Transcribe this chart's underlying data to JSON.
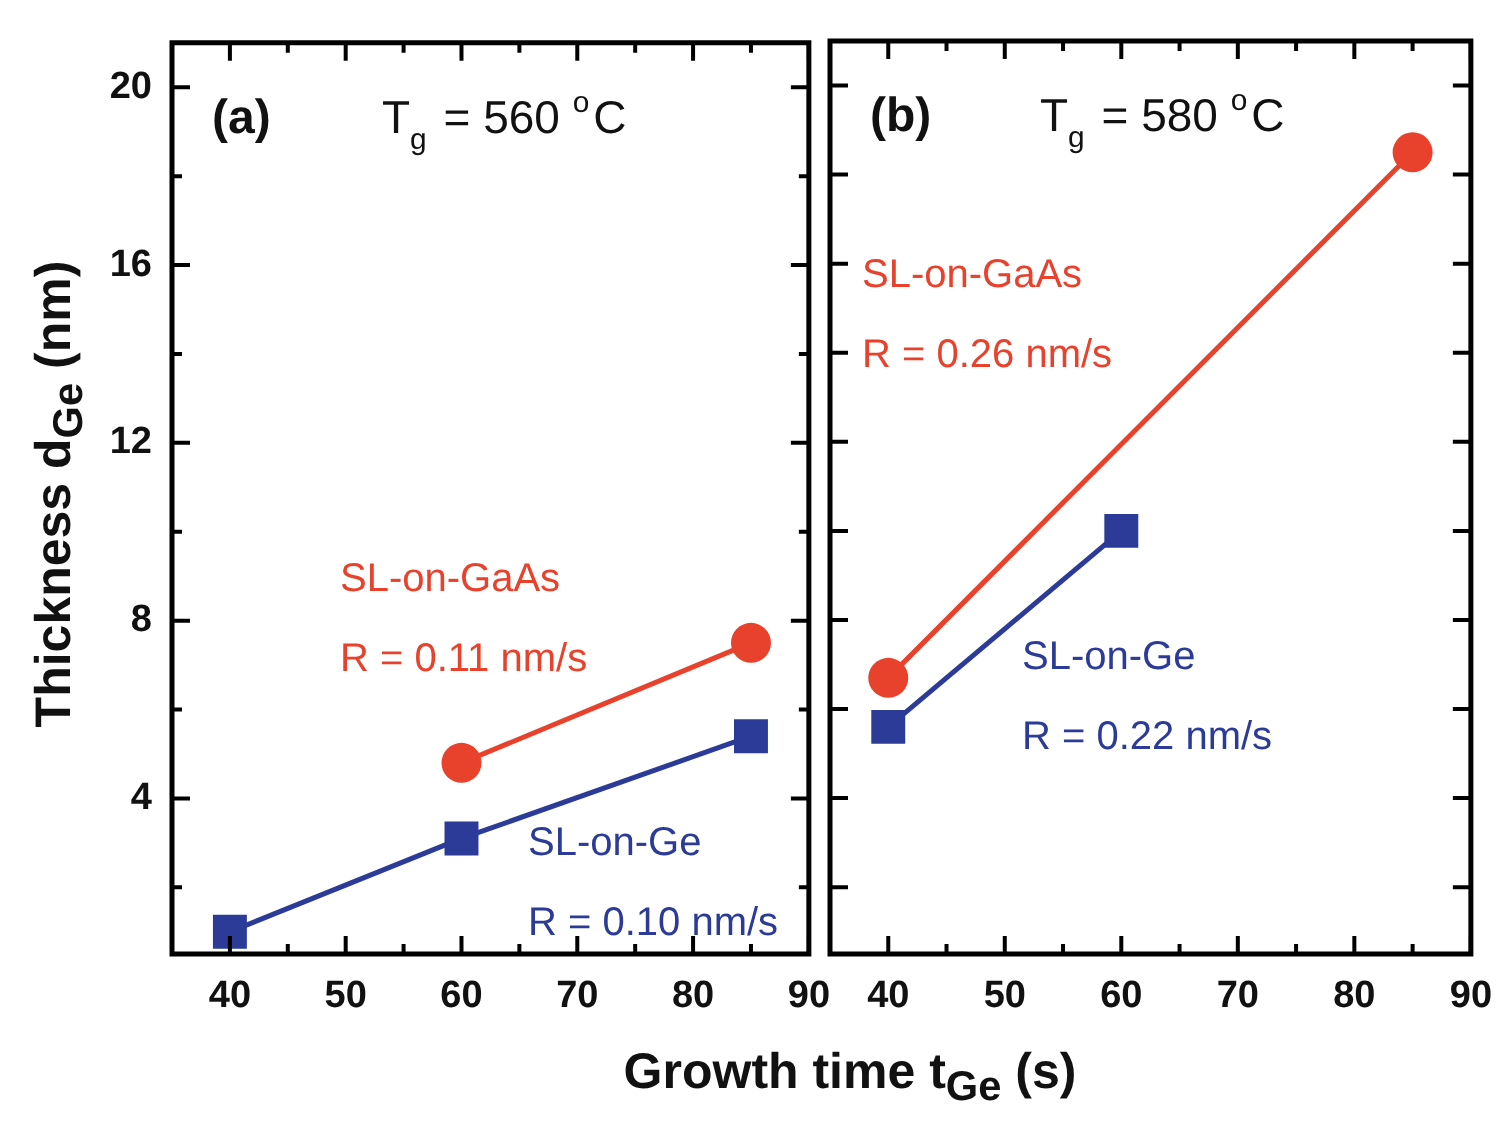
{
  "chart_data": [
    {
      "type": "line",
      "xlabel": "Growth time t$_{Ge}$ (s)",
      "ylabel": "Thickness d$_{Ge}$ (nm)",
      "xlim": [
        35,
        90
      ],
      "ylim": [
        0.5,
        21
      ],
      "xticks": [
        40,
        {
          "value": 45,
          "label": null
        },
        50,
        {
          "value": 55,
          "label": null
        },
        60,
        {
          "value": 65,
          "label": null
        },
        70,
        {
          "value": 75,
          "label": null
        },
        80,
        {
          "value": 85,
          "label": null
        },
        90
      ],
      "yticks": [
        {
          "value": 2,
          "label": null
        },
        4,
        {
          "value": 6,
          "label": null
        },
        8,
        {
          "value": 10,
          "label": null
        },
        12,
        {
          "value": 14,
          "label": null
        },
        16,
        {
          "value": 18,
          "label": null
        },
        20
      ],
      "line_style": "solid",
      "annotations": [
        "(a)",
        "T$_{g}$ = 560 $^{o}$C",
        "R = 0.11 nm/s",
        "R = 0.10 nm/s"
      ],
      "series": [
        {
          "name": "SL-on-GaAs",
          "color": "#e8412c",
          "marker": "circle",
          "x": [
            60,
            85
          ],
          "values": [
            4.8,
            7.5
          ]
        },
        {
          "name": "SL-on-Ge",
          "color": "#2b3b97",
          "marker": "square",
          "x": [
            40,
            60,
            85
          ],
          "values": [
            1.0,
            3.1,
            5.4
          ]
        }
      ]
    },
    {
      "type": "line",
      "tick_labels": "x",
      "xlim": [
        35,
        90
      ],
      "ylim": [
        0.5,
        21
      ],
      "xticks": [
        40,
        {
          "value": 45,
          "label": null
        },
        50,
        {
          "value": 55,
          "label": null
        },
        60,
        {
          "value": 65,
          "label": null
        },
        70,
        {
          "value": 75,
          "label": null
        },
        80,
        {
          "value": 85,
          "label": null
        },
        90
      ],
      "yticks": [
        {
          "value": 2,
          "label": null
        },
        {
          "value": 4,
          "label": null
        },
        {
          "value": 6,
          "label": null
        },
        {
          "value": 8,
          "label": null
        },
        {
          "value": 10,
          "label": null
        },
        {
          "value": 12,
          "label": null
        },
        {
          "value": 14,
          "label": null
        },
        {
          "value": 16,
          "label": null
        },
        {
          "value": 18,
          "label": null
        },
        {
          "value": 20,
          "label": null
        }
      ],
      "line_style": "solid",
      "annotations": [
        "(b)",
        "T$_{g}$ = 580 $^{o}$C",
        "R = 0.26 nm/s",
        "R = 0.22 nm/s"
      ],
      "series": [
        {
          "name": "SL-on-GaAs",
          "color": "#e8412c",
          "marker": "circle",
          "x": [
            40,
            85
          ],
          "values": [
            6.7,
            18.5
          ]
        },
        {
          "name": "SL-on-Ge",
          "color": "#2b3b97",
          "marker": "square",
          "x": [
            40,
            60
          ],
          "values": [
            5.6,
            10.0
          ]
        }
      ]
    }
  ]
}
